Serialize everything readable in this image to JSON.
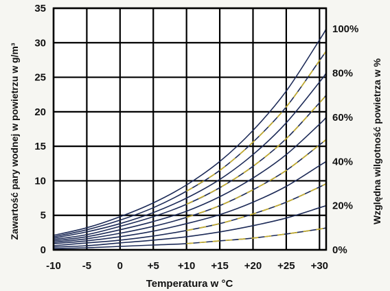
{
  "chart_data": {
    "type": "line",
    "xlabel": "Temperatura w °C",
    "ylabel": "Zawartość pary wodnej w powietrzu w g/m³",
    "y2label": "Względna wilgotność powietrza w %",
    "xlim": [
      -10,
      31
    ],
    "ylim": [
      0,
      35
    ],
    "grid": true,
    "x_ticks": [
      -10,
      -5,
      0,
      5,
      10,
      15,
      20,
      25,
      30
    ],
    "x_tick_labels": [
      "-10",
      "-5",
      "0",
      "+5",
      "+10",
      "+15",
      "+20",
      "+25",
      "+30"
    ],
    "y_ticks": [
      0,
      5,
      10,
      15,
      20,
      25,
      30,
      35
    ],
    "y_tick_labels": [
      "0",
      "5",
      "10",
      "15",
      "20",
      "25",
      "30",
      "35"
    ],
    "y2_tick_labels": [
      "0%",
      "20%",
      "40%",
      "60%",
      "80%",
      "100%"
    ],
    "x": [
      -10,
      -5,
      0,
      5,
      10,
      15,
      20,
      25,
      30,
      31
    ],
    "series": [
      {
        "color": "#1c2a57",
        "values": [
          2.1,
          3.2,
          4.8,
          6.8,
          9.4,
          12.8,
          17.3,
          23.0,
          30.4,
          32.0
        ]
      },
      {
        "color": "#1c2a57",
        "values": [
          1.9,
          2.9,
          4.3,
          6.1,
          8.5,
          11.5,
          15.6,
          20.7,
          27.4,
          28.8
        ]
      },
      {
        "color": "#1c2a57",
        "values": [
          1.7,
          2.6,
          3.8,
          5.4,
          7.5,
          10.2,
          13.8,
          18.4,
          24.3,
          25.6
        ]
      },
      {
        "color": "#1c2a57",
        "values": [
          1.5,
          2.2,
          3.4,
          4.8,
          6.6,
          9.0,
          12.1,
          16.1,
          21.3,
          22.4
        ]
      },
      {
        "color": "#1c2a57",
        "values": [
          1.3,
          1.9,
          2.9,
          4.1,
          5.6,
          7.7,
          10.4,
          13.8,
          18.2,
          19.2
        ]
      },
      {
        "color": "#1c2a57",
        "values": [
          1.1,
          1.6,
          2.4,
          3.4,
          4.7,
          6.4,
          8.7,
          11.5,
          15.2,
          16.0
        ]
      },
      {
        "color": "#1c2a57",
        "values": [
          0.9,
          1.3,
          1.9,
          2.7,
          3.8,
          5.1,
          6.9,
          9.2,
          12.2,
          12.8
        ]
      },
      {
        "color": "#1c2a57",
        "values": [
          0.6,
          1.0,
          1.4,
          2.0,
          2.8,
          3.8,
          5.2,
          6.9,
          9.1,
          9.6
        ]
      },
      {
        "color": "#1c2a57",
        "values": [
          0.4,
          0.6,
          1.0,
          1.4,
          1.9,
          2.6,
          3.5,
          4.6,
          6.1,
          6.4
        ]
      },
      {
        "color": "#1c2a57",
        "values": [
          0.2,
          0.3,
          0.5,
          0.7,
          0.9,
          1.3,
          1.7,
          2.3,
          3.0,
          3.2
        ]
      }
    ],
    "yellow_segments": {
      "color": "#c9b02a",
      "x_start": 10,
      "dash": "10 9",
      "series_indices": [
        1,
        3,
        5,
        7,
        9
      ]
    }
  }
}
